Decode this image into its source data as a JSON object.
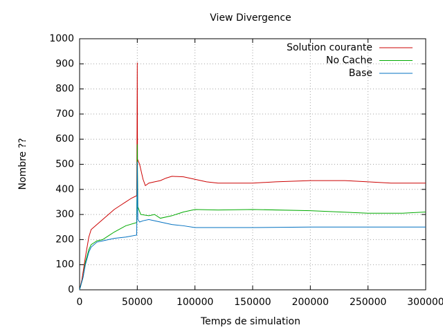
{
  "chart_data": {
    "type": "line",
    "title": "View Divergence",
    "x_label": "Temps de simulation",
    "y_label": "Nombre ??",
    "xlim": [
      0,
      300000
    ],
    "xticks": [
      0,
      50000,
      100000,
      150000,
      200000,
      250000,
      300000
    ],
    "ylim": [
      0,
      1000
    ],
    "yticks": [
      0,
      100,
      200,
      300,
      400,
      500,
      600,
      700,
      800,
      900,
      1000
    ],
    "grid": true,
    "legend": "top-right",
    "series": [
      {
        "name": "Solution courante",
        "color": "#cc0000",
        "x": [
          0,
          2000,
          5000,
          8000,
          10000,
          15000,
          20000,
          25000,
          30000,
          35000,
          40000,
          45000,
          49500,
          49800,
          50000,
          50200,
          52000,
          55000,
          57000,
          60000,
          65000,
          70000,
          75000,
          80000,
          90000,
          100000,
          110000,
          120000,
          150000,
          170000,
          200000,
          230000,
          250000,
          270000,
          300000
        ],
        "values": [
          0,
          40,
          130,
          210,
          240,
          260,
          280,
          300,
          320,
          335,
          350,
          365,
          375,
          640,
          905,
          520,
          500,
          440,
          415,
          425,
          430,
          435,
          445,
          452,
          450,
          440,
          430,
          425,
          425,
          430,
          435,
          435,
          430,
          425,
          425
        ]
      },
      {
        "name": "No Cache",
        "color": "#00aa00",
        "x": [
          0,
          3000,
          5000,
          8000,
          10000,
          15000,
          20000,
          25000,
          30000,
          40000,
          49500,
          49800,
          50000,
          50500,
          53000,
          60000,
          65000,
          70000,
          80000,
          90000,
          100000,
          120000,
          150000,
          200000,
          250000,
          280000,
          300000
        ],
        "values": [
          0,
          50,
          110,
          160,
          180,
          195,
          200,
          215,
          230,
          255,
          268,
          450,
          580,
          330,
          300,
          295,
          300,
          285,
          295,
          310,
          320,
          318,
          320,
          315,
          305,
          305,
          310
        ]
      },
      {
        "name": "Base",
        "color": "#0070c0",
        "x": [
          0,
          3000,
          5000,
          8000,
          10000,
          15000,
          20000,
          30000,
          40000,
          49500,
          49800,
          50000,
          50500,
          52000,
          55000,
          60000,
          70000,
          80000,
          90000,
          100000,
          150000,
          200000,
          250000,
          300000
        ],
        "values": [
          0,
          50,
          100,
          150,
          170,
          190,
          195,
          205,
          210,
          218,
          370,
          510,
          280,
          270,
          275,
          280,
          270,
          260,
          255,
          248,
          248,
          250,
          250,
          250
        ]
      }
    ]
  }
}
